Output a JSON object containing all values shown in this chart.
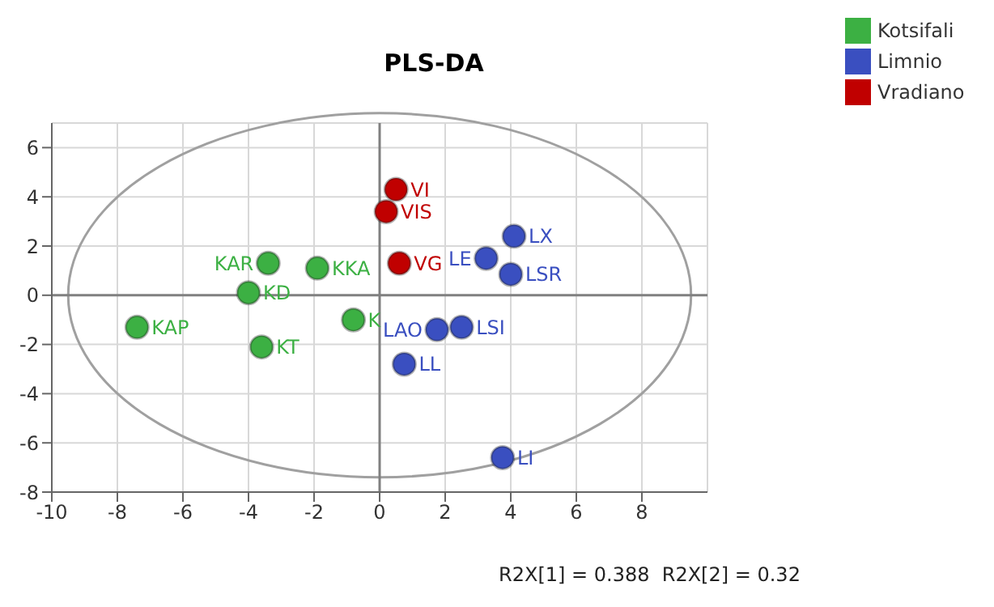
{
  "chart_data": {
    "type": "scatter",
    "title": "PLS-DA",
    "series": [
      {
        "name": "Kotsifali",
        "color": "#3cb043",
        "x": [
          -7.4,
          -3.4,
          -1.9,
          -4.0,
          -3.6,
          -0.8
        ],
        "values": [
          -1.3,
          1.3,
          1.1,
          0.1,
          -2.1,
          -1.0
        ]
      },
      {
        "name": "Limnio",
        "color": "#3a4fc0",
        "x": [
          4.1,
          3.25,
          4.0,
          1.75,
          2.5,
          0.75,
          3.75
        ],
        "values": [
          2.4,
          1.5,
          0.85,
          -1.4,
          -1.3,
          -2.8,
          -6.6
        ]
      },
      {
        "name": "Vradiano",
        "color": "#c00000",
        "x": [
          0.5,
          0.2,
          0.6
        ],
        "values": [
          4.3,
          3.4,
          1.3
        ]
      }
    ],
    "annotations": [
      {
        "text": "KAP",
        "x": -7.4,
        "y": -1.3
      },
      {
        "text": "KAR",
        "x": -3.4,
        "y": 1.3
      },
      {
        "text": "KKA",
        "x": -1.9,
        "y": 1.1
      },
      {
        "text": "KD",
        "x": -4.0,
        "y": 0.1
      },
      {
        "text": "KT",
        "x": -3.6,
        "y": -2.1
      },
      {
        "text": "K",
        "x": -0.8,
        "y": -1.0
      },
      {
        "text": "LX",
        "x": 4.1,
        "y": 2.4
      },
      {
        "text": "LE",
        "x": 3.25,
        "y": 1.5
      },
      {
        "text": "LSR",
        "x": 4.0,
        "y": 0.85
      },
      {
        "text": "LAO",
        "x": 1.75,
        "y": -1.4
      },
      {
        "text": "LSI",
        "x": 2.5,
        "y": -1.3
      },
      {
        "text": "LL",
        "x": 0.75,
        "y": -2.8
      },
      {
        "text": "LI",
        "x": 3.75,
        "y": -6.6
      },
      {
        "text": "VI",
        "x": 0.5,
        "y": 4.3
      },
      {
        "text": "VIS",
        "x": 0.2,
        "y": 3.4
      },
      {
        "text": "VG",
        "x": 0.6,
        "y": 1.3
      },
      "R2X[1] = 0.388  R2X[2] = 0.32"
    ],
    "xlim": [
      -10,
      10
    ],
    "ylim": [
      -8,
      7
    ],
    "xticks": [
      -10,
      -8,
      -6,
      -4,
      -2,
      0,
      2,
      4,
      6,
      8
    ],
    "yticks": [
      -8,
      -6,
      -4,
      -2,
      0,
      2,
      4,
      6
    ],
    "grid": true,
    "legend": "top right",
    "marker": "circle"
  }
}
